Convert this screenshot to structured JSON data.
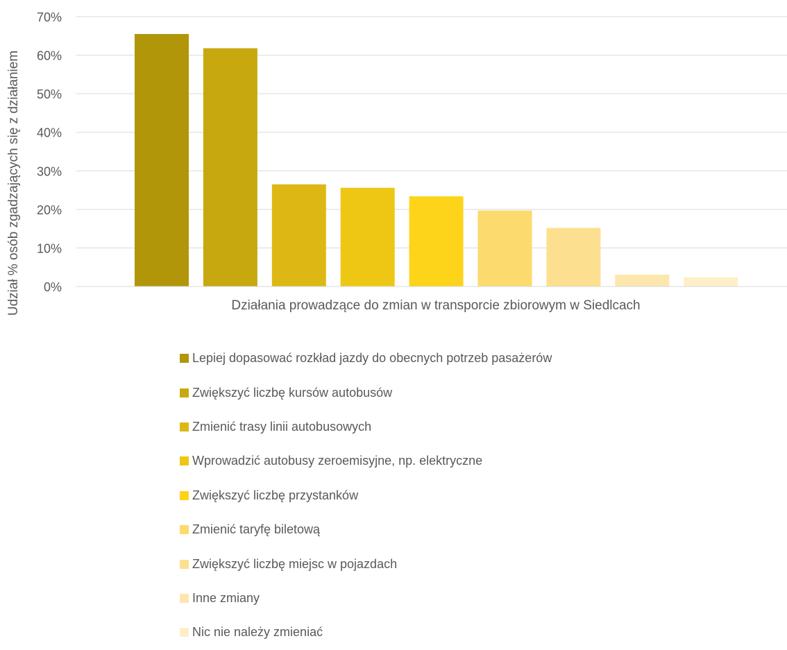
{
  "chart_data": {
    "type": "bar",
    "xlabel": "Działania prowadzące do zmian w transporcie zbiorowym w Siedlcach",
    "ylabel": "Udział % osób zgadzających się z działaniem",
    "ylim": [
      0,
      70
    ],
    "y_ticks": [
      "0%",
      "10%",
      "20%",
      "30%",
      "40%",
      "50%",
      "60%",
      "70%"
    ],
    "grid": true,
    "legend_position": "bottom",
    "series": [
      {
        "name": "Lepiej dopasować rozkład jazdy do obecnych potrzeb pasażerów",
        "value": 65.5,
        "color": "#B1960A"
      },
      {
        "name": "Zwiększyć liczbę kursów autobusów",
        "value": 61.8,
        "color": "#C8A80F"
      },
      {
        "name": "Zmienić trasy linii autobusowych",
        "value": 26.5,
        "color": "#DDB814"
      },
      {
        "name": "Wprowadzić autobusy zeroemisyjne, np. elektryczne",
        "value": 25.6,
        "color": "#EEC614"
      },
      {
        "name": "Zwiększyć liczbę przystanków",
        "value": 23.4,
        "color": "#FDD41A"
      },
      {
        "name": "Zmienić taryfę biletową",
        "value": 19.7,
        "color": "#FDDA6E"
      },
      {
        "name": "Zwiększyć liczbę miejsc w pojazdach",
        "value": 15.2,
        "color": "#FDDF90"
      },
      {
        "name": "Inne zmiany",
        "value": 3.1,
        "color": "#FDE7AE"
      },
      {
        "name": "Nic nie należy zmieniać",
        "value": 2.4,
        "color": "#FEEFC8"
      }
    ]
  }
}
